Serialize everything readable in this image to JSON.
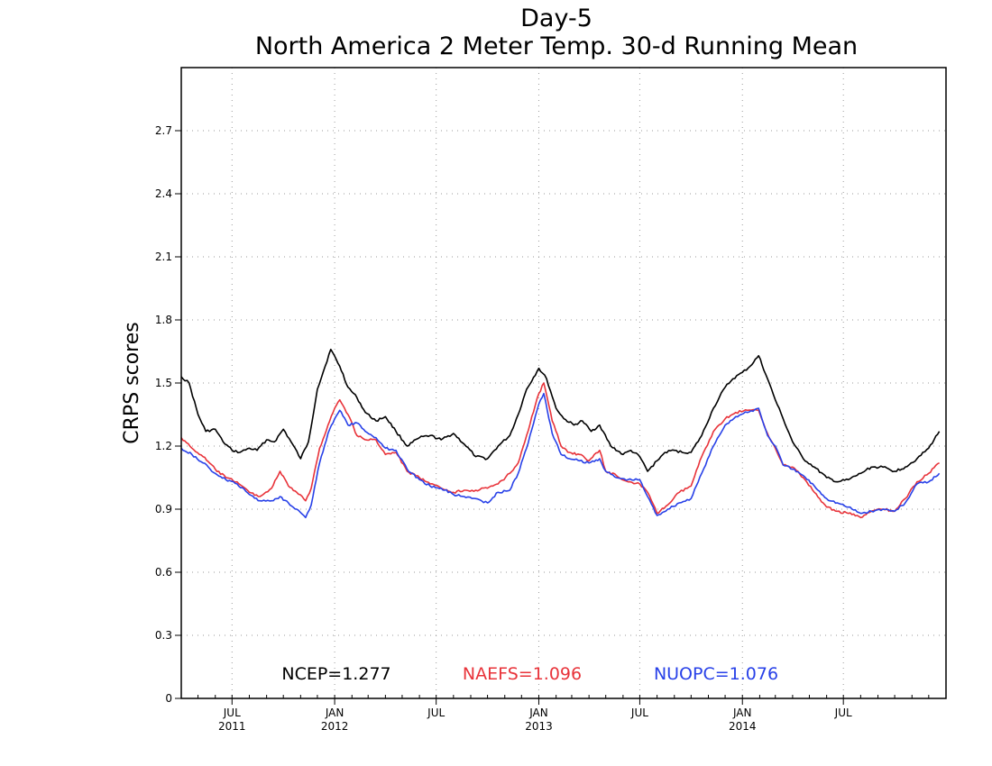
{
  "chart_data": {
    "type": "line",
    "title": "Day-5",
    "subtitle": "North America 2 Meter Temp. 30-d Running Mean",
    "xlabel": "",
    "ylabel": "CRPS scores",
    "x_range": [
      "2011-04-01",
      "2015-01-01"
    ],
    "ylim": [
      0,
      3.0
    ],
    "y_ticks": [
      {
        "value": 0,
        "label": "0"
      },
      {
        "value": 0.3,
        "label": "0.3"
      },
      {
        "value": 0.6,
        "label": "0.6"
      },
      {
        "value": 0.9,
        "label": "0.9"
      },
      {
        "value": 1.2,
        "label": "1.2"
      },
      {
        "value": 1.5,
        "label": "1.5"
      },
      {
        "value": 1.8,
        "label": "1.8"
      },
      {
        "value": 2.1,
        "label": "2.1"
      },
      {
        "value": 2.4,
        "label": "2.4"
      },
      {
        "value": 2.7,
        "label": "2.7"
      }
    ],
    "x_ticks": [
      {
        "date": "2011-07-01",
        "label": "JUL",
        "year": "2011"
      },
      {
        "date": "2012-01-01",
        "label": "JAN",
        "year": "2012"
      },
      {
        "date": "2012-07-01",
        "label": "JUL",
        "year": ""
      },
      {
        "date": "2013-01-01",
        "label": "JAN",
        "year": "2013"
      },
      {
        "date": "2013-07-01",
        "label": "JUL",
        "year": ""
      },
      {
        "date": "2014-01-01",
        "label": "JAN",
        "year": "2014"
      },
      {
        "date": "2014-07-01",
        "label": "JUL",
        "year": ""
      }
    ],
    "grid": true,
    "legend_position": "bottom",
    "series": [
      {
        "name": "NCEP",
        "legend_label": "NCEP=1.277",
        "color": "#000000",
        "points": [
          [
            "2011-04-01",
            1.53
          ],
          [
            "2011-04-15",
            1.5
          ],
          [
            "2011-05-01",
            1.35
          ],
          [
            "2011-05-15",
            1.27
          ],
          [
            "2011-06-01",
            1.28
          ],
          [
            "2011-06-15",
            1.22
          ],
          [
            "2011-07-01",
            1.18
          ],
          [
            "2011-07-15",
            1.17
          ],
          [
            "2011-08-01",
            1.19
          ],
          [
            "2011-08-15",
            1.18
          ],
          [
            "2011-09-01",
            1.23
          ],
          [
            "2011-09-15",
            1.22
          ],
          [
            "2011-10-01",
            1.28
          ],
          [
            "2011-10-15",
            1.22
          ],
          [
            "2011-11-01",
            1.14
          ],
          [
            "2011-11-15",
            1.22
          ],
          [
            "2011-12-01",
            1.47
          ],
          [
            "2011-12-15",
            1.58
          ],
          [
            "2011-12-25",
            1.66
          ],
          [
            "2012-01-10",
            1.58
          ],
          [
            "2012-01-25",
            1.48
          ],
          [
            "2012-02-10",
            1.43
          ],
          [
            "2012-02-25",
            1.36
          ],
          [
            "2012-03-15",
            1.32
          ],
          [
            "2012-04-01",
            1.34
          ],
          [
            "2012-04-20",
            1.27
          ],
          [
            "2012-05-10",
            1.2
          ],
          [
            "2012-06-01",
            1.24
          ],
          [
            "2012-06-20",
            1.25
          ],
          [
            "2012-07-10",
            1.23
          ],
          [
            "2012-08-01",
            1.26
          ],
          [
            "2012-08-20",
            1.21
          ],
          [
            "2012-09-10",
            1.15
          ],
          [
            "2012-10-01",
            1.14
          ],
          [
            "2012-10-20",
            1.2
          ],
          [
            "2012-11-10",
            1.25
          ],
          [
            "2012-11-25",
            1.35
          ],
          [
            "2012-12-10",
            1.47
          ],
          [
            "2013-01-01",
            1.57
          ],
          [
            "2013-01-15",
            1.52
          ],
          [
            "2013-02-01",
            1.38
          ],
          [
            "2013-02-15",
            1.33
          ],
          [
            "2013-03-05",
            1.3
          ],
          [
            "2013-03-20",
            1.32
          ],
          [
            "2013-04-05",
            1.27
          ],
          [
            "2013-04-20",
            1.3
          ],
          [
            "2013-05-10",
            1.2
          ],
          [
            "2013-06-01",
            1.16
          ],
          [
            "2013-06-15",
            1.18
          ],
          [
            "2013-07-01",
            1.15
          ],
          [
            "2013-07-15",
            1.08
          ],
          [
            "2013-08-01",
            1.13
          ],
          [
            "2013-08-15",
            1.17
          ],
          [
            "2013-09-01",
            1.18
          ],
          [
            "2013-09-15",
            1.17
          ],
          [
            "2013-10-01",
            1.17
          ],
          [
            "2013-10-20",
            1.25
          ],
          [
            "2013-11-10",
            1.38
          ],
          [
            "2013-12-01",
            1.48
          ],
          [
            "2013-12-15",
            1.52
          ],
          [
            "2014-01-01",
            1.55
          ],
          [
            "2014-01-15",
            1.58
          ],
          [
            "2014-01-30",
            1.63
          ],
          [
            "2014-02-15",
            1.52
          ],
          [
            "2014-03-01",
            1.42
          ],
          [
            "2014-03-15",
            1.33
          ],
          [
            "2014-04-01",
            1.22
          ],
          [
            "2014-04-20",
            1.14
          ],
          [
            "2014-05-10",
            1.1
          ],
          [
            "2014-06-01",
            1.05
          ],
          [
            "2014-06-20",
            1.03
          ],
          [
            "2014-07-10",
            1.04
          ],
          [
            "2014-08-01",
            1.07
          ],
          [
            "2014-08-20",
            1.1
          ],
          [
            "2014-09-10",
            1.1
          ],
          [
            "2014-10-01",
            1.08
          ],
          [
            "2014-10-20",
            1.1
          ],
          [
            "2014-11-10",
            1.14
          ],
          [
            "2014-12-01",
            1.19
          ],
          [
            "2014-12-20",
            1.27
          ]
        ]
      },
      {
        "name": "NAEFS",
        "legend_label": "NAEFS=1.096",
        "color": "#e8333a",
        "points": [
          [
            "2011-04-01",
            1.24
          ],
          [
            "2011-04-20",
            1.19
          ],
          [
            "2011-05-10",
            1.15
          ],
          [
            "2011-06-01",
            1.09
          ],
          [
            "2011-06-20",
            1.05
          ],
          [
            "2011-07-10",
            1.03
          ],
          [
            "2011-08-01",
            0.98
          ],
          [
            "2011-08-20",
            0.96
          ],
          [
            "2011-09-10",
            1.0
          ],
          [
            "2011-09-25",
            1.08
          ],
          [
            "2011-10-10",
            1.01
          ],
          [
            "2011-10-25",
            0.98
          ],
          [
            "2011-11-10",
            0.94
          ],
          [
            "2011-11-20",
            1.0
          ],
          [
            "2011-12-05",
            1.19
          ],
          [
            "2011-12-20",
            1.3
          ],
          [
            "2012-01-01",
            1.38
          ],
          [
            "2012-01-10",
            1.42
          ],
          [
            "2012-01-25",
            1.35
          ],
          [
            "2012-02-10",
            1.25
          ],
          [
            "2012-02-25",
            1.23
          ],
          [
            "2012-03-15",
            1.23
          ],
          [
            "2012-04-01",
            1.16
          ],
          [
            "2012-04-20",
            1.17
          ],
          [
            "2012-05-10",
            1.08
          ],
          [
            "2012-06-01",
            1.05
          ],
          [
            "2012-06-20",
            1.02
          ],
          [
            "2012-07-10",
            1.0
          ],
          [
            "2012-08-01",
            0.98
          ],
          [
            "2012-08-20",
            0.99
          ],
          [
            "2012-09-10",
            0.99
          ],
          [
            "2012-10-01",
            1.0
          ],
          [
            "2012-10-20",
            1.02
          ],
          [
            "2012-11-10",
            1.07
          ],
          [
            "2012-11-25",
            1.12
          ],
          [
            "2012-12-10",
            1.25
          ],
          [
            "2013-01-01",
            1.45
          ],
          [
            "2013-01-10",
            1.5
          ],
          [
            "2013-01-25",
            1.32
          ],
          [
            "2013-02-10",
            1.2
          ],
          [
            "2013-02-25",
            1.17
          ],
          [
            "2013-03-15",
            1.16
          ],
          [
            "2013-04-01",
            1.13
          ],
          [
            "2013-04-20",
            1.18
          ],
          [
            "2013-05-01",
            1.08
          ],
          [
            "2013-05-20",
            1.06
          ],
          [
            "2013-06-10",
            1.03
          ],
          [
            "2013-07-01",
            1.02
          ],
          [
            "2013-07-15",
            0.98
          ],
          [
            "2013-08-01",
            0.88
          ],
          [
            "2013-08-20",
            0.92
          ],
          [
            "2013-09-10",
            0.98
          ],
          [
            "2013-10-01",
            1.01
          ],
          [
            "2013-10-20",
            1.15
          ],
          [
            "2013-11-10",
            1.27
          ],
          [
            "2013-12-01",
            1.33
          ],
          [
            "2013-12-20",
            1.36
          ],
          [
            "2014-01-10",
            1.37
          ],
          [
            "2014-01-30",
            1.37
          ],
          [
            "2014-02-15",
            1.26
          ],
          [
            "2014-03-01",
            1.19
          ],
          [
            "2014-03-15",
            1.11
          ],
          [
            "2014-04-01",
            1.1
          ],
          [
            "2014-04-20",
            1.05
          ],
          [
            "2014-05-10",
            0.98
          ],
          [
            "2014-06-01",
            0.91
          ],
          [
            "2014-06-20",
            0.89
          ],
          [
            "2014-07-10",
            0.88
          ],
          [
            "2014-08-01",
            0.86
          ],
          [
            "2014-08-20",
            0.89
          ],
          [
            "2014-09-10",
            0.9
          ],
          [
            "2014-10-01",
            0.89
          ],
          [
            "2014-10-20",
            0.95
          ],
          [
            "2014-11-10",
            1.03
          ],
          [
            "2014-12-01",
            1.07
          ],
          [
            "2014-12-20",
            1.12
          ]
        ]
      },
      {
        "name": "NUOPC",
        "legend_label": "NUOPC=1.076",
        "color": "#2841e8",
        "points": [
          [
            "2011-04-01",
            1.19
          ],
          [
            "2011-04-20",
            1.16
          ],
          [
            "2011-05-10",
            1.12
          ],
          [
            "2011-06-01",
            1.07
          ],
          [
            "2011-06-20",
            1.04
          ],
          [
            "2011-07-10",
            1.02
          ],
          [
            "2011-08-01",
            0.97
          ],
          [
            "2011-08-20",
            0.94
          ],
          [
            "2011-09-10",
            0.94
          ],
          [
            "2011-09-25",
            0.96
          ],
          [
            "2011-10-10",
            0.93
          ],
          [
            "2011-10-25",
            0.9
          ],
          [
            "2011-11-10",
            0.86
          ],
          [
            "2011-11-20",
            0.92
          ],
          [
            "2011-12-05",
            1.12
          ],
          [
            "2011-12-20",
            1.26
          ],
          [
            "2012-01-01",
            1.33
          ],
          [
            "2012-01-10",
            1.37
          ],
          [
            "2012-01-25",
            1.3
          ],
          [
            "2012-02-10",
            1.31
          ],
          [
            "2012-02-25",
            1.27
          ],
          [
            "2012-03-15",
            1.24
          ],
          [
            "2012-04-01",
            1.19
          ],
          [
            "2012-04-20",
            1.18
          ],
          [
            "2012-05-10",
            1.09
          ],
          [
            "2012-06-01",
            1.04
          ],
          [
            "2012-06-20",
            1.01
          ],
          [
            "2012-07-10",
            1.0
          ],
          [
            "2012-08-01",
            0.97
          ],
          [
            "2012-08-20",
            0.96
          ],
          [
            "2012-09-10",
            0.95
          ],
          [
            "2012-10-01",
            0.93
          ],
          [
            "2012-10-20",
            0.98
          ],
          [
            "2012-11-10",
            0.99
          ],
          [
            "2012-11-25",
            1.07
          ],
          [
            "2012-12-10",
            1.19
          ],
          [
            "2013-01-01",
            1.4
          ],
          [
            "2013-01-10",
            1.45
          ],
          [
            "2013-01-25",
            1.26
          ],
          [
            "2013-02-10",
            1.16
          ],
          [
            "2013-02-25",
            1.14
          ],
          [
            "2013-03-15",
            1.13
          ],
          [
            "2013-04-01",
            1.12
          ],
          [
            "2013-04-20",
            1.14
          ],
          [
            "2013-05-01",
            1.08
          ],
          [
            "2013-05-20",
            1.05
          ],
          [
            "2013-06-10",
            1.04
          ],
          [
            "2013-07-01",
            1.04
          ],
          [
            "2013-07-15",
            0.96
          ],
          [
            "2013-08-01",
            0.87
          ],
          [
            "2013-08-20",
            0.9
          ],
          [
            "2013-09-10",
            0.93
          ],
          [
            "2013-10-01",
            0.95
          ],
          [
            "2013-10-20",
            1.07
          ],
          [
            "2013-11-10",
            1.2
          ],
          [
            "2013-12-01",
            1.3
          ],
          [
            "2013-12-20",
            1.34
          ],
          [
            "2014-01-10",
            1.36
          ],
          [
            "2014-01-30",
            1.38
          ],
          [
            "2014-02-15",
            1.25
          ],
          [
            "2014-03-01",
            1.2
          ],
          [
            "2014-03-15",
            1.11
          ],
          [
            "2014-04-01",
            1.09
          ],
          [
            "2014-04-20",
            1.06
          ],
          [
            "2014-05-10",
            1.01
          ],
          [
            "2014-06-01",
            0.95
          ],
          [
            "2014-06-20",
            0.93
          ],
          [
            "2014-07-10",
            0.91
          ],
          [
            "2014-08-01",
            0.88
          ],
          [
            "2014-08-20",
            0.89
          ],
          [
            "2014-09-10",
            0.9
          ],
          [
            "2014-10-01",
            0.89
          ],
          [
            "2014-10-20",
            0.93
          ],
          [
            "2014-11-10",
            1.02
          ],
          [
            "2014-12-01",
            1.03
          ],
          [
            "2014-12-20",
            1.07
          ]
        ]
      }
    ]
  }
}
